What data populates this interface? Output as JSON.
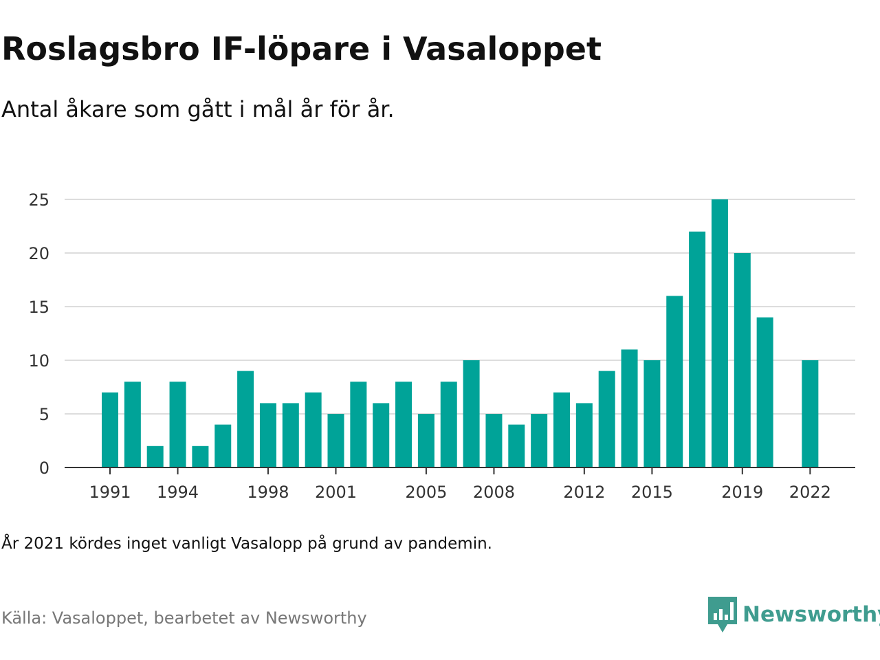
{
  "header": {
    "title": "Roslagsbro IF-löpare i Vasaloppet",
    "subtitle": "Antal åkare som gått i mål år för år."
  },
  "footer": {
    "note": "År 2021 kördes inget vanligt Vasalopp på grund av pandemin.",
    "source": "Källa: Vasaloppet, bearbetet av Newsworthy",
    "brand": "Newsworthy",
    "brand_icon": "newsworthy-logo-icon"
  },
  "colors": {
    "bar": "#00a398",
    "grid": "#dddddd",
    "axis": "#333333",
    "brand": "#3f9c8f"
  },
  "chart_data": {
    "type": "bar",
    "x": [
      1991,
      1992,
      1993,
      1994,
      1995,
      1996,
      1997,
      1998,
      1999,
      2000,
      2001,
      2002,
      2003,
      2004,
      2005,
      2006,
      2007,
      2008,
      2009,
      2010,
      2011,
      2012,
      2013,
      2014,
      2015,
      2016,
      2017,
      2018,
      2019,
      2020,
      2022
    ],
    "values": [
      7,
      8,
      2,
      8,
      2,
      4,
      9,
      6,
      6,
      7,
      5,
      8,
      6,
      8,
      5,
      8,
      10,
      5,
      4,
      5,
      7,
      6,
      9,
      11,
      10,
      16,
      22,
      25,
      20,
      14,
      10
    ],
    "x_range": [
      1991,
      2022
    ],
    "ylim": [
      0,
      25
    ],
    "y_ticks": [
      0,
      5,
      10,
      15,
      20,
      25
    ],
    "x_ticks": [
      1991,
      1994,
      1998,
      2001,
      2005,
      2008,
      2012,
      2015,
      2019,
      2022
    ],
    "grid": true,
    "legend": "none"
  }
}
